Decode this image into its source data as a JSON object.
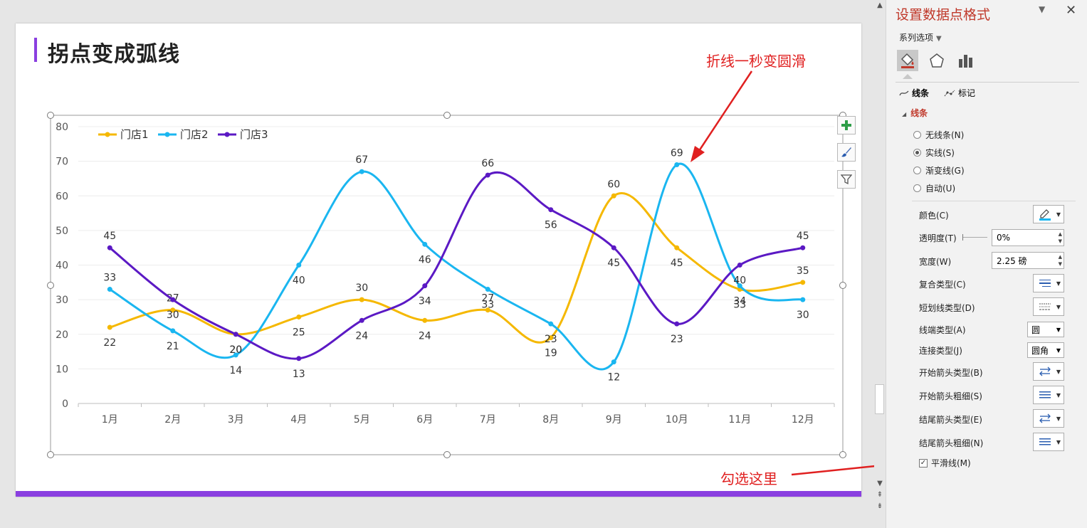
{
  "slide": {
    "title": "拐点变成弧线"
  },
  "chart_data": {
    "type": "line",
    "smooth": true,
    "categories": [
      "1月",
      "2月",
      "3月",
      "4月",
      "5月",
      "6月",
      "7月",
      "8月",
      "9月",
      "10月",
      "11月",
      "12月"
    ],
    "series": [
      {
        "name": "门店1",
        "color": "#f5b800",
        "values": [
          22,
          27,
          20,
          25,
          30,
          24,
          27,
          19,
          60,
          45,
          33,
          35
        ]
      },
      {
        "name": "门店2",
        "color": "#1ab6f0",
        "values": [
          33,
          21,
          14,
          40,
          67,
          46,
          33,
          23,
          12,
          69,
          34,
          30
        ]
      },
      {
        "name": "门店3",
        "color": "#5b19c4",
        "values": [
          45,
          30,
          20,
          13,
          24,
          34,
          66,
          56,
          45,
          23,
          40,
          45
        ]
      }
    ],
    "ylim": [
      0,
      80
    ],
    "yticks": [
      0,
      10,
      20,
      30,
      40,
      50,
      60,
      70,
      80
    ],
    "grid": true,
    "legend": "top-left",
    "data_labels": true
  },
  "annotations": {
    "smooth_hint": "折线一秒变圆滑",
    "check_hint": "勾选这里",
    "arrow_color": "#e02020"
  },
  "pane": {
    "title": "设置数据点格式",
    "series_options": "系列选项",
    "tabs": [
      "fill-line-icon",
      "effects-icon",
      "series-options-icon"
    ],
    "subtabs": {
      "line": "线条",
      "marker": "标记"
    },
    "section": "线条",
    "radios": [
      {
        "label": "无线条(N)",
        "checked": false
      },
      {
        "label": "实线(S)",
        "checked": true
      },
      {
        "label": "渐变线(G)",
        "checked": false
      },
      {
        "label": "自动(U)",
        "checked": false
      }
    ],
    "props": {
      "color": "颜色(C)",
      "transparency": "透明度(T)",
      "transparency_value": "0%",
      "width": "宽度(W)",
      "width_value": "2.25 磅",
      "compound": "复合类型(C)",
      "dash": "短划线类型(D)",
      "cap": "线端类型(A)",
      "cap_value": "圆",
      "join": "连接类型(J)",
      "join_value": "圆角",
      "begin_arrow_type": "开始箭头类型(B)",
      "begin_arrow_size": "开始箭头粗细(S)",
      "end_arrow_type": "结尾箭头类型(E)",
      "end_arrow_size": "结尾箭头粗细(N)"
    },
    "smooth_line": {
      "label": "平滑线(M)",
      "checked": true
    },
    "accent_color": "#c0392b"
  }
}
